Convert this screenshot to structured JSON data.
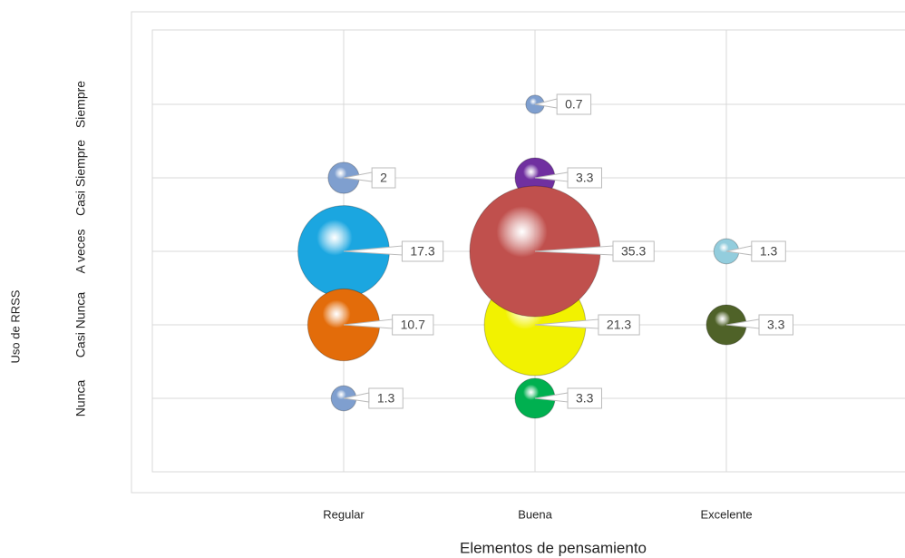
{
  "chart_data": {
    "type": "bubble",
    "x_label": "Elementos de pensamiento",
    "y_label": "Uso de RRSS",
    "x_categories": [
      "Regular",
      "Buena",
      "Excelente"
    ],
    "y_categories": [
      "Nunca",
      "Casi Nunca",
      "A veces",
      "Casi Siempre",
      "Siempre"
    ],
    "grid": true,
    "points": [
      {
        "x": "Regular",
        "y": "Casi Siempre",
        "size": 2,
        "color": "#7f9fcf"
      },
      {
        "x": "Regular",
        "y": "A veces",
        "size": 17.3,
        "color": "#1ba6e0"
      },
      {
        "x": "Regular",
        "y": "Casi Nunca",
        "size": 10.7,
        "color": "#e36c0a"
      },
      {
        "x": "Regular",
        "y": "Nunca",
        "size": 1.3,
        "color": "#7f9fcf"
      },
      {
        "x": "Buena",
        "y": "Siempre",
        "size": 0.7,
        "color": "#7f9fcf"
      },
      {
        "x": "Buena",
        "y": "Casi Siempre",
        "size": 3.3,
        "color": "#7030a0"
      },
      {
        "x": "Buena",
        "y": "Casi Nunca",
        "size": 21.3,
        "color": "#f2f200"
      },
      {
        "x": "Buena",
        "y": "A veces",
        "size": 35.3,
        "color": "#c0504d"
      },
      {
        "x": "Buena",
        "y": "Nunca",
        "size": 3.3,
        "color": "#00b050"
      },
      {
        "x": "Excelente",
        "y": "A veces",
        "size": 1.3,
        "color": "#93cddd"
      },
      {
        "x": "Excelente",
        "y": "Casi Nunca",
        "size": 3.3,
        "color": "#4f6228"
      }
    ]
  }
}
